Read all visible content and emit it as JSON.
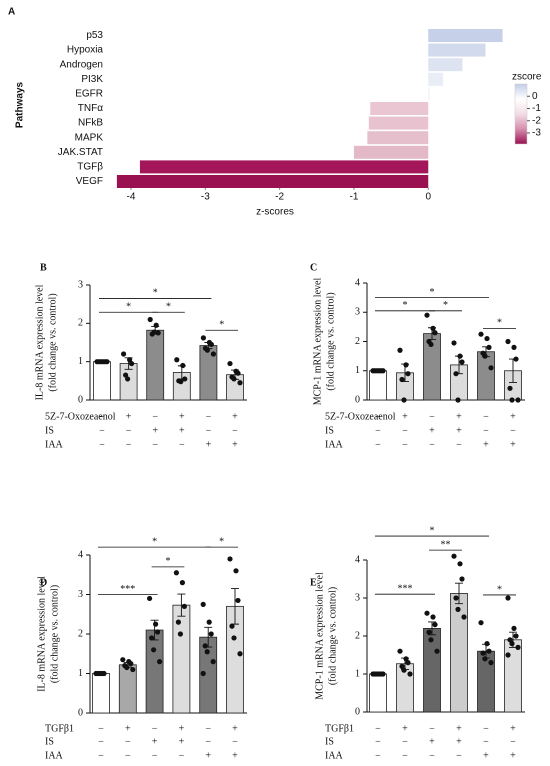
{
  "chart_data": [
    {
      "type": "hbar",
      "panel": "A",
      "ylabel": "Pathways",
      "xlabel": "z-scores",
      "categories": [
        "p53",
        "Hypoxia",
        "Androgen",
        "PI3K",
        "EGFR",
        "TNFα",
        "NFkB",
        "MAPK",
        "JAK.STAT",
        "TGFβ",
        "VEGF"
      ],
      "values": [
        1.0,
        0.77,
        0.46,
        0.2,
        0.02,
        -0.78,
        -0.8,
        -0.82,
        -1.0,
        -3.88,
        -4.19
      ],
      "colors": [
        "#c6d0e8",
        "#d2daed",
        "#dde3f1",
        "#e9edf6",
        "#f3f3f7",
        "#e9c6d2",
        "#e8c3cf",
        "#e6bfcc",
        "#e3b8c7",
        "#a3175a",
        "#9a1152"
      ],
      "xlim": [
        -4.35,
        1.1
      ],
      "xticks": [
        -4,
        -3,
        -2,
        -1,
        0
      ],
      "colorbar": {
        "title": "zscore",
        "lim": [
          -3.9,
          1.0
        ],
        "ticks": [
          0,
          -1,
          -2,
          -3
        ],
        "colors": [
          "#9a1152",
          "#d68fad",
          "#f3dde5",
          "#ffffff",
          "#c3cde7"
        ]
      }
    },
    {
      "type": "bar",
      "panel": "B",
      "ylabel": [
        "IL-8 mRNA expression level",
        "(fold change vs. control)"
      ],
      "ylim": [
        0,
        3
      ],
      "yticks": [
        0,
        1,
        2,
        3
      ],
      "values": [
        1.0,
        0.95,
        1.82,
        0.72,
        1.42,
        0.66
      ],
      "errors": [
        0.02,
        0.15,
        0.1,
        0.17,
        0.08,
        0.12
      ],
      "colors": [
        "#ffffff",
        "#dcdcdc",
        "#8c8c8c",
        "#dcdcdc",
        "#8c8c8c",
        "#dcdcdc"
      ],
      "points": [
        [
          1,
          1,
          1,
          1,
          1,
          1
        ],
        [
          1.2,
          1.05,
          0.95,
          0.65,
          0.55
        ],
        [
          2.1,
          1.95,
          1.75,
          1.72,
          1.77
        ],
        [
          1.05,
          0.9,
          0.55,
          0.5,
          0.48
        ],
        [
          1.62,
          1.5,
          1.45,
          1.35,
          1.3,
          1.2
        ],
        [
          0.95,
          0.75,
          0.7,
          0.6,
          0.55,
          0.45
        ]
      ],
      "brackets": [
        {
          "from": 0,
          "to": 4,
          "y": 2.65,
          "label": "*"
        },
        {
          "from": 0,
          "to": 2,
          "y": 2.29,
          "label": "*"
        },
        {
          "from": 2,
          "to": 3,
          "y": 2.29,
          "label": "*"
        },
        {
          "from": 4,
          "to": 5,
          "y": 1.82,
          "label": "*"
        }
      ],
      "conditions": {
        "labels": [
          "5Z-7-Oxozeaenol",
          "IS",
          "IAA"
        ],
        "rows": [
          [
            "−",
            "+",
            "−",
            "+",
            "−",
            "+"
          ],
          [
            "−",
            "−",
            "+",
            "+",
            "−",
            "−"
          ],
          [
            "−",
            "−",
            "−",
            "−",
            "+",
            "+"
          ]
        ]
      }
    },
    {
      "type": "bar",
      "panel": "C",
      "ylabel": [
        "MCP-1 mRNA expression level",
        "(fold change vs. control)"
      ],
      "ylim": [
        0,
        4
      ],
      "yticks": [
        0,
        1,
        2,
        3,
        4
      ],
      "values": [
        1.0,
        0.93,
        2.27,
        1.2,
        1.65,
        1.0
      ],
      "errors": [
        0.02,
        0.3,
        0.2,
        0.3,
        0.17,
        0.4
      ],
      "colors": [
        "#ffffff",
        "#dcdcdc",
        "#8c8c8c",
        "#dcdcdc",
        "#8c8c8c",
        "#dcdcdc"
      ],
      "points": [
        [
          1,
          1,
          1,
          1,
          1,
          1
        ],
        [
          1.7,
          1.2,
          0.9,
          0.7,
          0.0
        ],
        [
          2.9,
          2.45,
          2.3,
          2.0,
          1.9
        ],
        [
          1.95,
          1.5,
          1.3,
          0.9,
          0.0
        ],
        [
          2.25,
          2.1,
          1.8,
          1.6,
          1.5,
          1.1
        ],
        [
          2.0,
          1.8,
          1.4,
          0.4,
          0.0,
          0.0
        ]
      ],
      "brackets": [
        {
          "from": 0,
          "to": 4,
          "y": 3.5,
          "label": "*"
        },
        {
          "from": 0,
          "to": 2,
          "y": 3.05,
          "label": "*"
        },
        {
          "from": 2,
          "to": 3,
          "y": 3.05,
          "label": "*"
        },
        {
          "from": 4,
          "to": 5,
          "y": 2.45,
          "label": "*"
        }
      ],
      "conditions": {
        "labels": [
          "5Z-7-Oxozeaenol",
          "IS",
          "IAA"
        ],
        "rows": [
          [
            "−",
            "+",
            "−",
            "+",
            "−",
            "+"
          ],
          [
            "−",
            "−",
            "+",
            "+",
            "−",
            "−"
          ],
          [
            "−",
            "−",
            "−",
            "−",
            "+",
            "+"
          ]
        ]
      }
    },
    {
      "type": "bar",
      "panel": "D",
      "ylabel": [
        "IL-8 mRNA expression level",
        "(fold change vs. control)"
      ],
      "ylim": [
        0,
        4
      ],
      "yticks": [
        0,
        1,
        2,
        3,
        4
      ],
      "values": [
        1.0,
        1.22,
        2.1,
        2.73,
        1.92,
        2.7
      ],
      "errors": [
        0.02,
        0.06,
        0.25,
        0.28,
        0.25,
        0.45
      ],
      "colors": [
        "#ffffff",
        "#a8a8a8",
        "#777777",
        "#dddddd",
        "#777777",
        "#dddddd"
      ],
      "points": [
        [
          1,
          1,
          1,
          1,
          1
        ],
        [
          1.35,
          1.3,
          1.25,
          1.2,
          1.15,
          1.1
        ],
        [
          2.9,
          2.25,
          2.05,
          1.9,
          1.6,
          1.3
        ],
        [
          3.55,
          3.3,
          2.7,
          2.3,
          2.0
        ],
        [
          2.75,
          2.3,
          2.0,
          1.7,
          1.55,
          1.3,
          1.0
        ],
        [
          3.9,
          3.6,
          2.85,
          2.2,
          1.9,
          1.5
        ]
      ],
      "brackets": [
        {
          "from": 0,
          "to": 4,
          "y": 4.2,
          "label": "*"
        },
        {
          "from": 4,
          "to": 5,
          "y": 4.2,
          "label": "*"
        },
        {
          "from": 2,
          "to": 3,
          "y": 3.7,
          "label": "*"
        },
        {
          "from": 0,
          "to": 2,
          "y": 3.0,
          "label": "***"
        }
      ],
      "conditions": {
        "labels": [
          "TGFβ1",
          "IS",
          "IAA"
        ],
        "rows": [
          [
            "−",
            "+",
            "−",
            "+",
            "−",
            "+"
          ],
          [
            "−",
            "−",
            "+",
            "+",
            "−",
            "−"
          ],
          [
            "−",
            "−",
            "−",
            "−",
            "+",
            "+"
          ]
        ]
      }
    },
    {
      "type": "bar",
      "panel": "E",
      "ylabel": [
        "MCP-1 mRNA expression level",
        "(fold change vs. control)"
      ],
      "ylim": [
        0,
        4
      ],
      "yticks": [
        0,
        1,
        2,
        3,
        4
      ],
      "values": [
        1.0,
        1.27,
        2.2,
        3.12,
        1.6,
        1.9
      ],
      "errors": [
        0.02,
        0.15,
        0.17,
        0.27,
        0.18,
        0.2
      ],
      "colors": [
        "#ffffff",
        "#dddddd",
        "#666666",
        "#cccccc",
        "#666666",
        "#dddddd"
      ],
      "points": [
        [
          1,
          1,
          1,
          1,
          1,
          1
        ],
        [
          1.6,
          1.4,
          1.3,
          1.2,
          1.1,
          1.0
        ],
        [
          2.6,
          2.5,
          2.3,
          2.1,
          1.9,
          1.6
        ],
        [
          4.1,
          3.9,
          3.5,
          3.0,
          2.7,
          2.5
        ],
        [
          2.35,
          1.8,
          1.6,
          1.55,
          1.4,
          1.3
        ],
        [
          3.0,
          2.2,
          2.0,
          1.9,
          1.8,
          1.7,
          1.5
        ]
      ],
      "brackets": [
        {
          "from": 0,
          "to": 4,
          "y": 4.63,
          "label": "*"
        },
        {
          "from": 2,
          "to": 3,
          "y": 4.26,
          "label": "**"
        },
        {
          "from": 0,
          "to": 2,
          "y": 3.1,
          "label": "***"
        },
        {
          "from": 4,
          "to": 5,
          "y": 3.08,
          "label": "*"
        }
      ],
      "conditions": {
        "labels": [
          "TGFβ1",
          "IS",
          "IAA"
        ],
        "rows": [
          [
            "−",
            "+",
            "−",
            "+",
            "−",
            "+"
          ],
          [
            "−",
            "−",
            "+",
            "+",
            "−",
            "−"
          ],
          [
            "−",
            "−",
            "−",
            "−",
            "+",
            "+"
          ]
        ]
      }
    }
  ]
}
